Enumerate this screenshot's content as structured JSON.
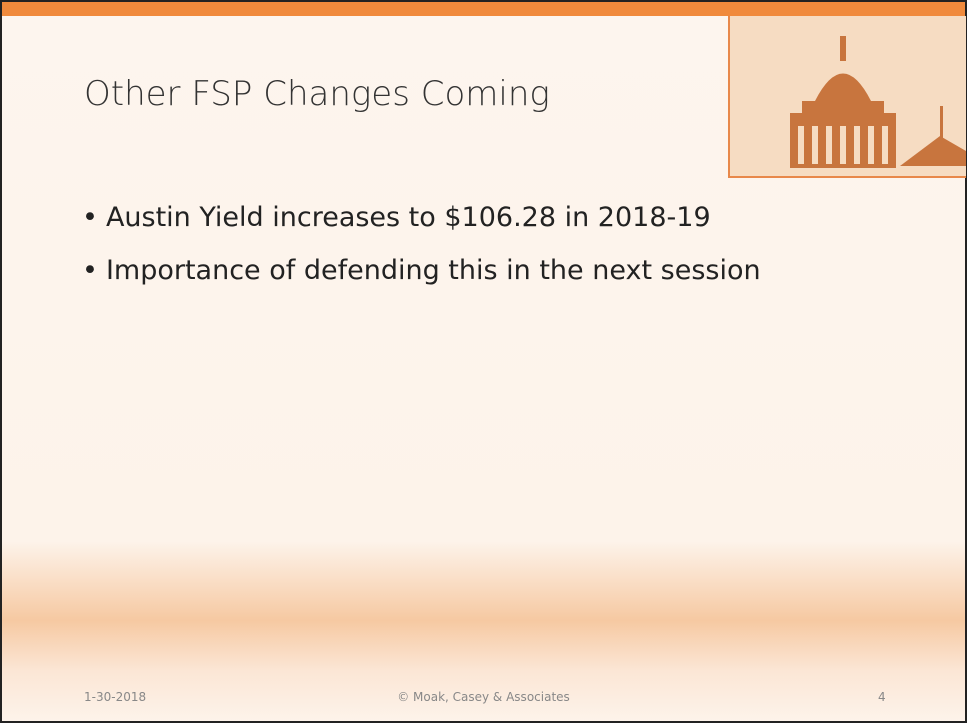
{
  "slide": {
    "title": "Other FSP Changes Coming",
    "bullets": [
      "Austin Yield increases to $106.28 in 2018-19",
      "Importance of defending this in the next session"
    ],
    "footer": {
      "date": "1-30-2018",
      "copyright": "© Moak, Casey & Associates",
      "page": "4"
    }
  }
}
